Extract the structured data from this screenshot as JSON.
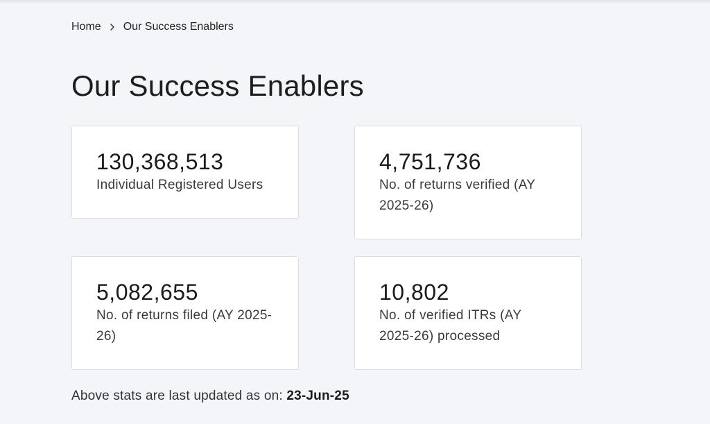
{
  "breadcrumb": {
    "home": "Home",
    "current": "Our Success Enablers"
  },
  "page": {
    "title": "Our Success Enablers"
  },
  "stats": [
    {
      "value": "130,368,513",
      "label": "Individual Registered Users"
    },
    {
      "value": "4,751,736",
      "label": "No. of returns verified (AY 2025-26)"
    },
    {
      "value": "5,082,655",
      "label": "No. of returns filed (AY 2025-26)"
    },
    {
      "value": "10,802",
      "label": "No. of verified ITRs (AY 2025-26) processed"
    }
  ],
  "footer": {
    "prefix": "Above stats are last updated as on: ",
    "date": "23-Jun-25"
  },
  "icons": {
    "separator": "chevron-right-icon"
  }
}
